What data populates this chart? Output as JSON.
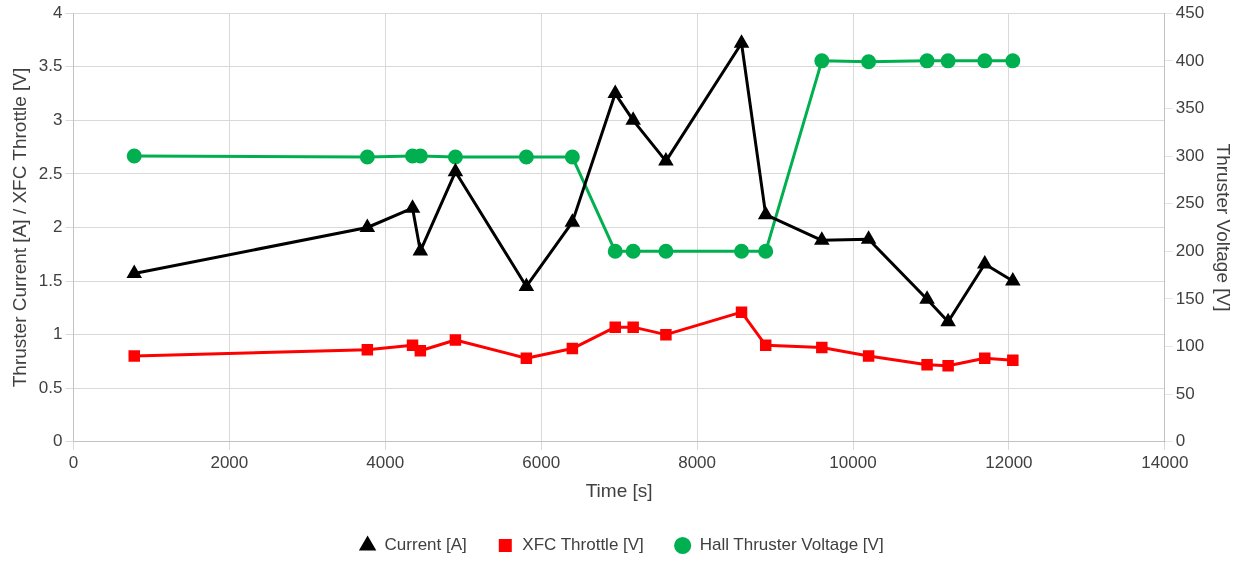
{
  "chart_data": {
    "type": "line",
    "xlabel": "Time [s]",
    "ylabel": "Thruster Current [A] / XFC Throttle [V]",
    "y2label": "Thruster Voltage [V]",
    "x": [
      780,
      3770,
      4350,
      4450,
      4900,
      5810,
      6400,
      6950,
      7180,
      7600,
      8570,
      8880,
      9600,
      10200,
      10950,
      11220,
      11690,
      12050
    ],
    "series": [
      {
        "name": "Current [A]",
        "color": "#000000",
        "marker": "triangle",
        "values": [
          1.57,
          2.0,
          2.18,
          1.78,
          2.52,
          1.45,
          2.05,
          3.25,
          3.0,
          2.62,
          3.72,
          2.12,
          1.88,
          1.89,
          1.33,
          1.12,
          1.66,
          1.5
        ]
      },
      {
        "name": "XFC Throttle [V]",
        "color": "#ff0000",
        "marker": "square",
        "values": [
          0.8,
          0.86,
          0.9,
          0.85,
          0.95,
          0.78,
          0.87,
          1.07,
          1.07,
          1.0,
          1.21,
          0.9,
          0.88,
          0.8,
          0.72,
          0.71,
          0.78,
          0.76
        ]
      },
      {
        "name": "Hall Thruster Voltage [V]",
        "color": "#00b050",
        "marker": "circle",
        "axis": "y2",
        "values": [
          300,
          299,
          300,
          300,
          299,
          299,
          299,
          200,
          200,
          200,
          200,
          200,
          400,
          399,
          400,
          400,
          400,
          400
        ]
      }
    ],
    "xlim": [
      0,
      14000
    ],
    "xticks": [
      0,
      2000,
      4000,
      6000,
      8000,
      10000,
      12000,
      14000
    ],
    "ylim": [
      0,
      4
    ],
    "yticks": [
      0,
      0.5,
      1,
      1.5,
      2,
      2.5,
      3,
      3.5,
      4
    ],
    "y2lim": [
      0,
      450
    ],
    "y2ticks": [
      0,
      50,
      100,
      150,
      200,
      250,
      300,
      350,
      400,
      450
    ],
    "grid": true,
    "legend": "bottom"
  }
}
